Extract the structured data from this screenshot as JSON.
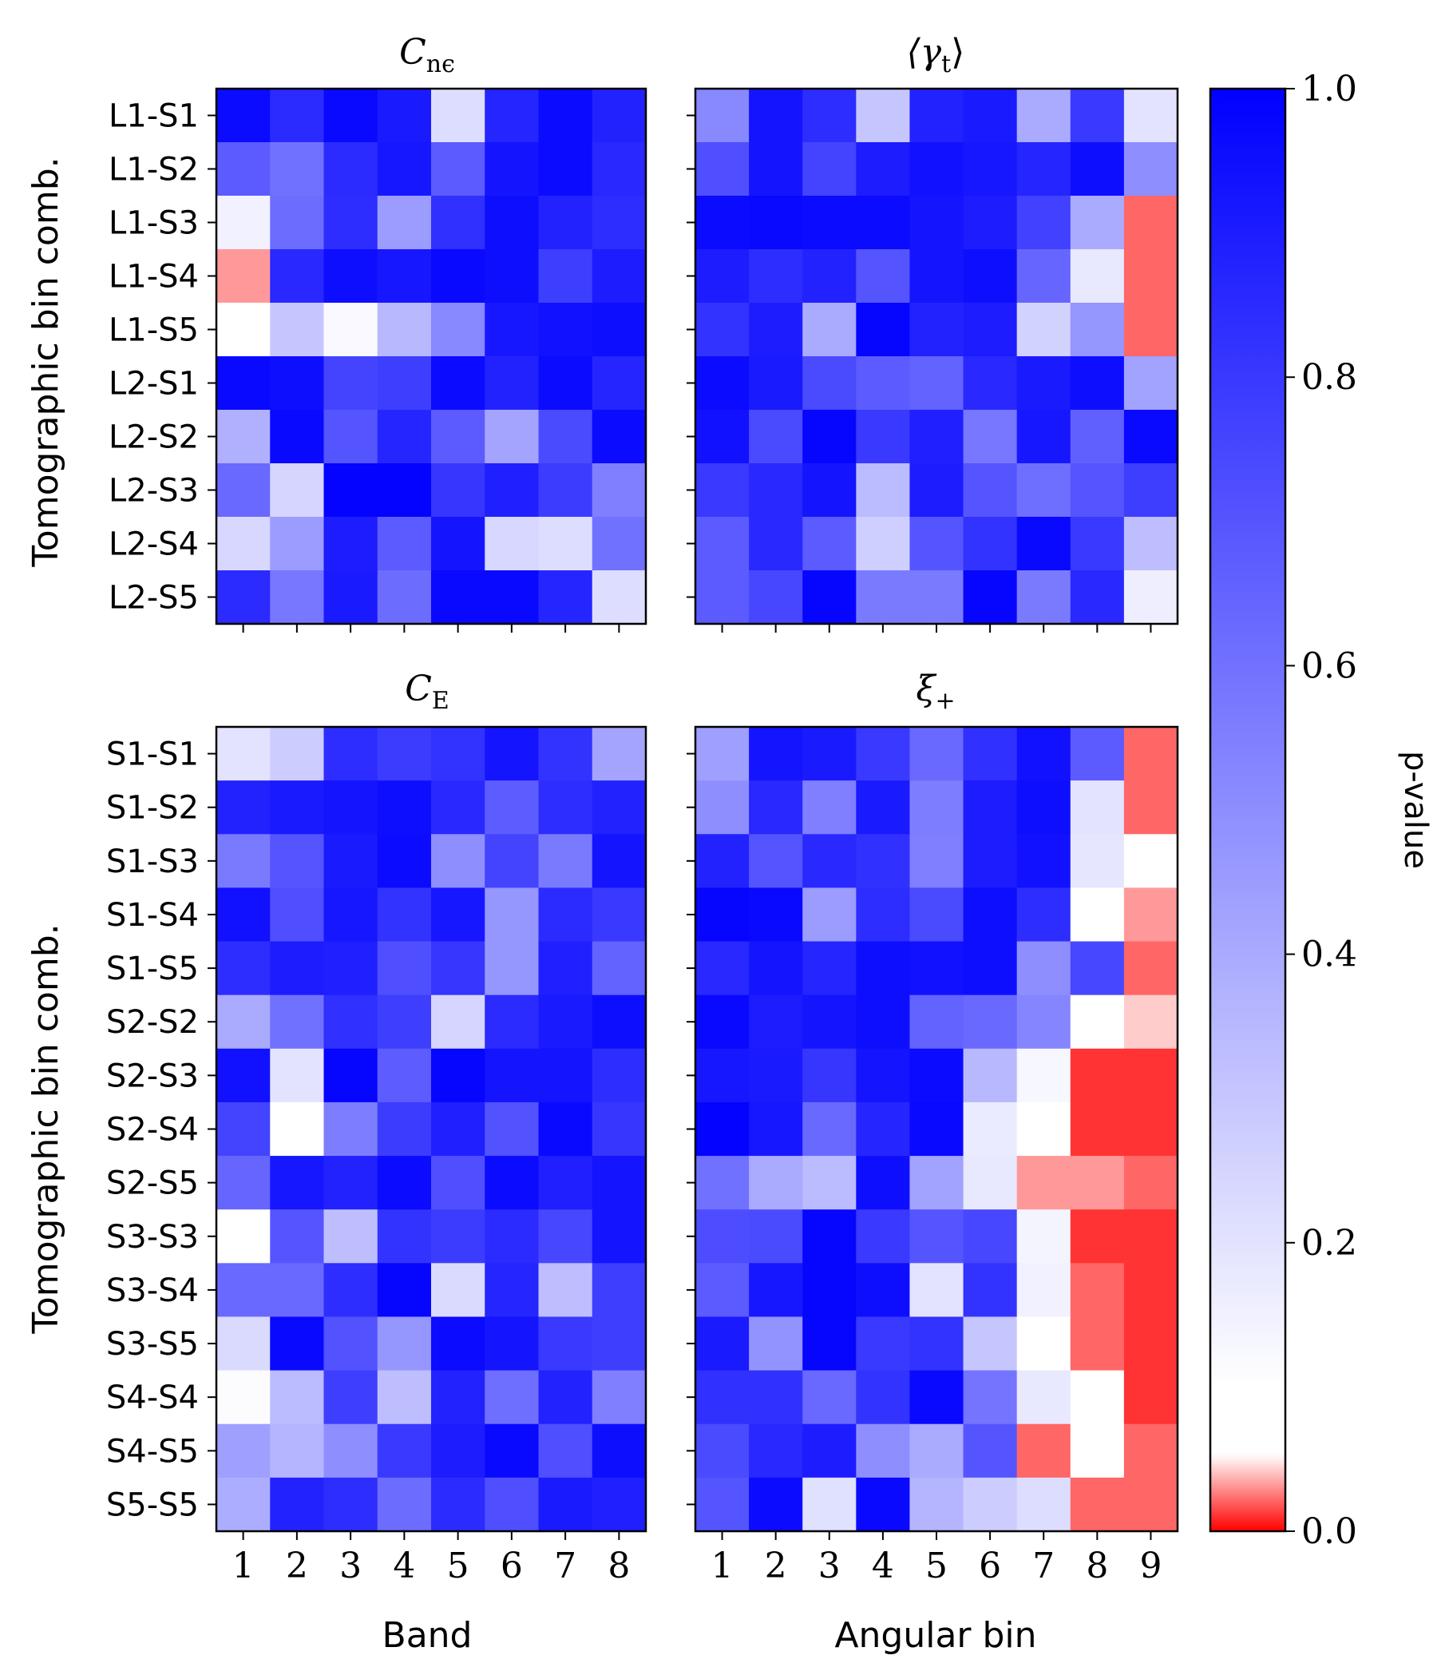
{
  "chart_data": [
    {
      "type": "heatmap",
      "panel": "top-left",
      "title": "C_nε",
      "title_main": "C",
      "title_sub": "nϵ",
      "xlabel": "",
      "ylabel": "Tomographic bin comb.",
      "x_categories": [
        "1",
        "2",
        "3",
        "4",
        "5",
        "6",
        "7",
        "8"
      ],
      "rows": [
        "L1-S1",
        "L1-S2",
        "L1-S3",
        "L1-S4",
        "L1-S5",
        "L2-S1",
        "L2-S2",
        "L2-S3",
        "L2-S4",
        "L2-S5"
      ],
      "values": [
        [
          0.96,
          0.85,
          0.97,
          0.91,
          0.22,
          0.87,
          0.96,
          0.88
        ],
        [
          0.68,
          0.6,
          0.85,
          0.92,
          0.68,
          0.93,
          0.96,
          0.86
        ],
        [
          0.15,
          0.62,
          0.84,
          0.45,
          0.83,
          0.95,
          0.88,
          0.84
        ],
        [
          0.03,
          0.86,
          0.95,
          0.92,
          0.97,
          0.95,
          0.78,
          0.9
        ],
        [
          0.08,
          0.3,
          0.12,
          0.35,
          0.52,
          0.92,
          0.94,
          0.95
        ],
        [
          0.97,
          0.95,
          0.76,
          0.78,
          0.96,
          0.88,
          0.96,
          0.87
        ],
        [
          0.38,
          0.97,
          0.7,
          0.87,
          0.68,
          0.42,
          0.74,
          0.96
        ],
        [
          0.63,
          0.25,
          0.99,
          0.99,
          0.81,
          0.89,
          0.79,
          0.55
        ],
        [
          0.24,
          0.45,
          0.9,
          0.68,
          0.93,
          0.24,
          0.22,
          0.6
        ],
        [
          0.85,
          0.58,
          0.91,
          0.62,
          0.97,
          0.97,
          0.87,
          0.22
        ]
      ]
    },
    {
      "type": "heatmap",
      "panel": "top-right",
      "title": "⟨γt⟩",
      "title_main": "⟨γ",
      "title_sub": "t",
      "title_end": "⟩",
      "xlabel": "",
      "ylabel": "",
      "x_categories": [
        "1",
        "2",
        "3",
        "4",
        "5",
        "6",
        "7",
        "8",
        "9"
      ],
      "rows": [
        "L1-S1",
        "L1-S2",
        "L1-S3",
        "L1-S4",
        "L1-S5",
        "L2-S1",
        "L2-S2",
        "L2-S3",
        "L2-S4",
        "L2-S5"
      ],
      "values": [
        [
          0.52,
          0.93,
          0.84,
          0.3,
          0.88,
          0.91,
          0.4,
          0.8,
          0.2
        ],
        [
          0.72,
          0.93,
          0.76,
          0.9,
          0.94,
          0.92,
          0.87,
          0.95,
          0.5
        ],
        [
          0.96,
          0.97,
          0.96,
          0.96,
          0.93,
          0.9,
          0.77,
          0.4,
          0.02
        ],
        [
          0.9,
          0.84,
          0.88,
          0.7,
          0.93,
          0.95,
          0.64,
          0.18,
          0.02
        ],
        [
          0.82,
          0.9,
          0.4,
          0.98,
          0.88,
          0.9,
          0.26,
          0.47,
          0.02
        ],
        [
          0.96,
          0.91,
          0.74,
          0.68,
          0.65,
          0.86,
          0.91,
          0.95,
          0.43
        ],
        [
          0.94,
          0.74,
          0.98,
          0.8,
          0.89,
          0.58,
          0.92,
          0.66,
          0.97
        ],
        [
          0.8,
          0.86,
          0.93,
          0.34,
          0.9,
          0.7,
          0.61,
          0.7,
          0.78
        ],
        [
          0.68,
          0.86,
          0.68,
          0.27,
          0.7,
          0.82,
          0.97,
          0.8,
          0.33
        ],
        [
          0.68,
          0.75,
          0.98,
          0.57,
          0.57,
          0.98,
          0.57,
          0.86,
          0.16
        ]
      ]
    },
    {
      "type": "heatmap",
      "panel": "bottom-left",
      "title": "C_E",
      "title_main": "C",
      "title_sub": "E",
      "xlabel": "Band",
      "ylabel": "Tomographic bin comb.",
      "x_categories": [
        "1",
        "2",
        "3",
        "4",
        "5",
        "6",
        "7",
        "8"
      ],
      "rows": [
        "S1-S1",
        "S1-S2",
        "S1-S3",
        "S1-S4",
        "S1-S5",
        "S2-S2",
        "S2-S3",
        "S2-S4",
        "S2-S5",
        "S3-S3",
        "S3-S4",
        "S3-S5",
        "S4-S4",
        "S4-S5",
        "S5-S5"
      ],
      "values": [
        [
          0.2,
          0.28,
          0.84,
          0.79,
          0.82,
          0.93,
          0.82,
          0.42
        ],
        [
          0.88,
          0.91,
          0.93,
          0.95,
          0.86,
          0.67,
          0.84,
          0.88
        ],
        [
          0.57,
          0.7,
          0.91,
          0.96,
          0.5,
          0.76,
          0.57,
          0.93
        ],
        [
          0.94,
          0.72,
          0.92,
          0.82,
          0.92,
          0.47,
          0.85,
          0.8
        ],
        [
          0.84,
          0.9,
          0.89,
          0.72,
          0.81,
          0.47,
          0.89,
          0.65
        ],
        [
          0.4,
          0.6,
          0.83,
          0.78,
          0.25,
          0.85,
          0.91,
          0.95
        ],
        [
          0.94,
          0.2,
          0.98,
          0.67,
          0.98,
          0.93,
          0.93,
          0.84
        ],
        [
          0.76,
          0.08,
          0.56,
          0.79,
          0.89,
          0.71,
          0.97,
          0.81
        ],
        [
          0.64,
          0.92,
          0.88,
          0.96,
          0.72,
          0.96,
          0.89,
          0.93
        ],
        [
          0.1,
          0.7,
          0.33,
          0.82,
          0.79,
          0.85,
          0.75,
          0.93
        ],
        [
          0.63,
          0.63,
          0.84,
          0.98,
          0.23,
          0.87,
          0.33,
          0.78
        ],
        [
          0.23,
          0.97,
          0.71,
          0.47,
          0.96,
          0.93,
          0.8,
          0.78
        ],
        [
          0.11,
          0.34,
          0.78,
          0.33,
          0.88,
          0.61,
          0.88,
          0.55
        ],
        [
          0.44,
          0.36,
          0.5,
          0.8,
          0.9,
          0.97,
          0.72,
          0.95
        ],
        [
          0.39,
          0.88,
          0.84,
          0.62,
          0.85,
          0.72,
          0.91,
          0.89
        ]
      ]
    },
    {
      "type": "heatmap",
      "panel": "bottom-right",
      "title": "ξ+",
      "title_main": "ξ",
      "title_sub": "+",
      "xlabel": "Angular bin",
      "ylabel": "",
      "x_categories": [
        "1",
        "2",
        "3",
        "4",
        "5",
        "6",
        "7",
        "8",
        "9"
      ],
      "rows": [
        "S1-S1",
        "S1-S2",
        "S1-S3",
        "S1-S4",
        "S1-S5",
        "S2-S2",
        "S2-S3",
        "S2-S4",
        "S2-S5",
        "S3-S3",
        "S3-S4",
        "S3-S5",
        "S4-S4",
        "S4-S5",
        "S5-S5"
      ],
      "values": [
        [
          0.44,
          0.93,
          0.91,
          0.8,
          0.63,
          0.83,
          0.94,
          0.68,
          0.02
        ],
        [
          0.5,
          0.86,
          0.55,
          0.91,
          0.56,
          0.9,
          0.95,
          0.2,
          0.02
        ],
        [
          0.88,
          0.7,
          0.86,
          0.83,
          0.55,
          0.9,
          0.94,
          0.19,
          0.09
        ],
        [
          0.98,
          0.97,
          0.45,
          0.84,
          0.74,
          0.95,
          0.84,
          0.05,
          0.03
        ],
        [
          0.86,
          0.93,
          0.87,
          0.95,
          0.94,
          0.95,
          0.5,
          0.75,
          0.02
        ],
        [
          0.97,
          0.9,
          0.93,
          0.95,
          0.65,
          0.63,
          0.53,
          0.1,
          0.04
        ],
        [
          0.92,
          0.91,
          0.81,
          0.93,
          0.96,
          0.35,
          0.13,
          0.01,
          0.01
        ],
        [
          0.99,
          0.92,
          0.63,
          0.87,
          0.97,
          0.17,
          0.09,
          0.01,
          0.01
        ],
        [
          0.6,
          0.4,
          0.34,
          0.95,
          0.43,
          0.18,
          0.03,
          0.03,
          0.02
        ],
        [
          0.73,
          0.74,
          0.98,
          0.8,
          0.7,
          0.75,
          0.14,
          0.01,
          0.01
        ],
        [
          0.68,
          0.92,
          0.98,
          0.95,
          0.2,
          0.82,
          0.15,
          0.02,
          0.01
        ],
        [
          0.91,
          0.48,
          0.98,
          0.8,
          0.82,
          0.3,
          0.08,
          0.02,
          0.01
        ],
        [
          0.83,
          0.83,
          0.63,
          0.82,
          0.97,
          0.59,
          0.18,
          0.1,
          0.01
        ],
        [
          0.74,
          0.86,
          0.9,
          0.5,
          0.4,
          0.7,
          0.02,
          0.1,
          0.02
        ],
        [
          0.7,
          0.96,
          0.21,
          0.97,
          0.36,
          0.28,
          0.22,
          0.02,
          0.02
        ]
      ]
    }
  ],
  "colorbar": {
    "label": "p-value",
    "range": [
      0.0,
      1.0
    ],
    "ticks": [
      "0.0",
      "0.2",
      "0.4",
      "0.6",
      "0.8",
      "1.0"
    ],
    "tick_values": [
      0,
      0.2,
      0.4,
      0.6,
      0.8,
      1.0
    ],
    "color_low": "#ff0000",
    "color_mid": "#ffffff",
    "color_high": "#0000ff",
    "red_threshold": 0.05
  }
}
